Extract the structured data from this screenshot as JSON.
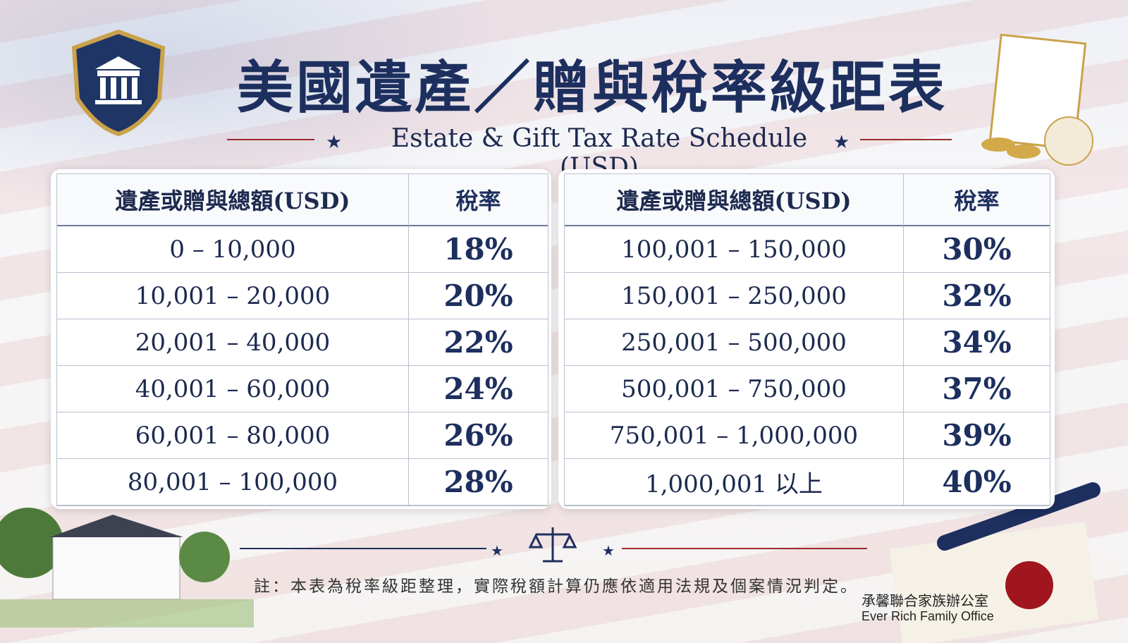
{
  "title": "美國遺產／贈與稅率級距表",
  "subtitle": "Estate & Gift Tax Rate Schedule (USD)",
  "tables": [
    {
      "headers": [
        "遺產或贈與總額(USD)",
        "稅率"
      ],
      "rows": [
        [
          "0 – 10,000",
          "18%"
        ],
        [
          "10,001 – 20,000",
          "20%"
        ],
        [
          "20,001 – 40,000",
          "22%"
        ],
        [
          "40,001 – 60,000",
          "24%"
        ],
        [
          "60,001 – 80,000",
          "26%"
        ],
        [
          "80,001 – 100,000",
          "28%"
        ]
      ]
    },
    {
      "headers": [
        "遺產或贈與總額(USD)",
        "稅率"
      ],
      "rows": [
        [
          "100,001 – 150,000",
          "30%"
        ],
        [
          "150,001 – 250,000",
          "32%"
        ],
        [
          "250,001 – 500,000",
          "34%"
        ],
        [
          "500,001 – 750,000",
          "37%"
        ],
        [
          "750,001 – 1,000,000",
          "39%"
        ],
        [
          "1,000,001 以上",
          "40%"
        ]
      ]
    }
  ],
  "note": "註：本表為稅率級距整理，實際稅額計算仍應依適用法規及個案情況判定。",
  "brand": {
    "name_zh": "承馨聯合家族辦公室",
    "name_en": "Ever Rich Family Office"
  }
}
